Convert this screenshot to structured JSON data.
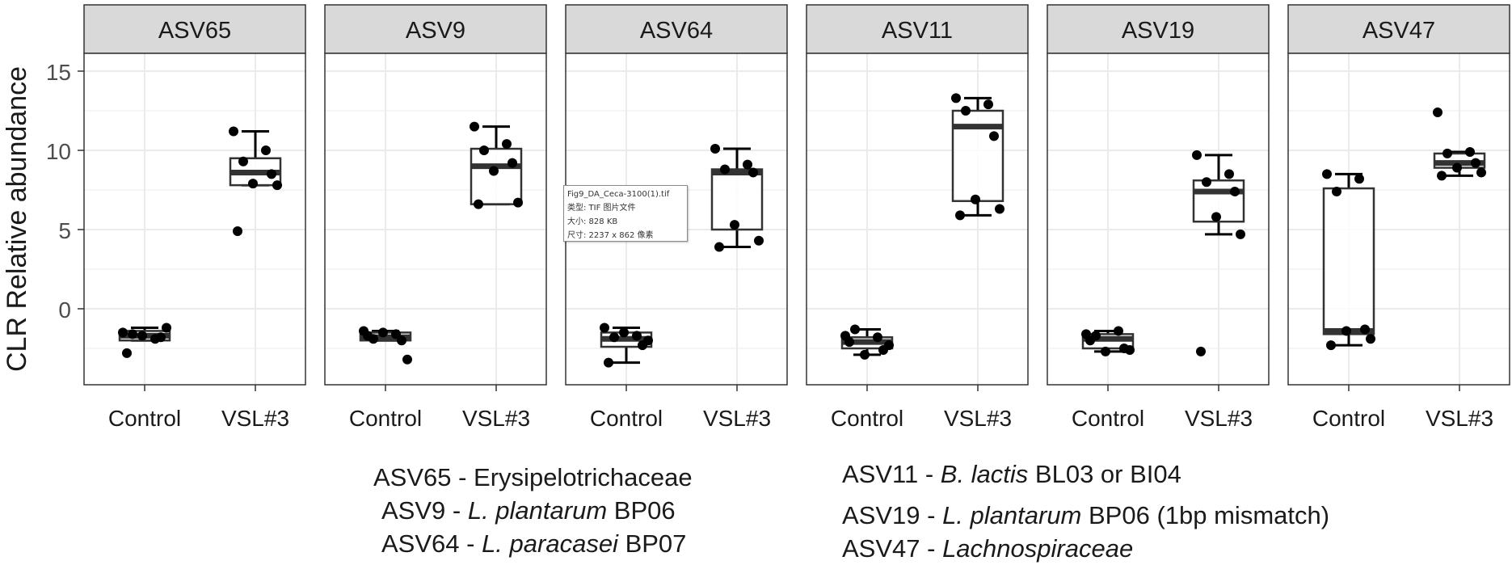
{
  "chart_data": {
    "type": "boxplot",
    "ylabel": "CLR Relative abundance",
    "ylim": [
      -4.8,
      19.2
    ],
    "yticks": [
      0,
      5,
      10,
      15
    ],
    "grid": true,
    "groups": [
      "Control",
      "VSL#3"
    ],
    "facets": [
      {
        "label": "ASV65",
        "boxes": [
          {
            "group": "Control",
            "min": -1.2,
            "q1": -2.0,
            "median": -1.7,
            "q3": -1.4,
            "max": -1.2,
            "whisker_low": -2.0,
            "whisker_high": -1.2,
            "points": [
              -1.5,
              -1.9,
              -1.6,
              -1.8,
              -1.7,
              -1.2,
              -2.8
            ]
          },
          {
            "group": "VSL#3",
            "q1": 7.8,
            "median": 8.6,
            "q3": 9.5,
            "whisker_low": 7.8,
            "whisker_high": 11.2,
            "points": [
              11.2,
              10.0,
              9.3,
              8.5,
              7.9,
              7.8,
              4.9
            ]
          }
        ]
      },
      {
        "label": "ASV9",
        "boxes": [
          {
            "group": "Control",
            "q1": -2.0,
            "median": -1.8,
            "q3": -1.5,
            "whisker_low": -2.0,
            "whisker_high": -1.4,
            "points": [
              -1.4,
              -1.6,
              -1.9,
              -2.0,
              -1.5,
              -3.2,
              -1.7
            ]
          },
          {
            "group": "VSL#3",
            "q1": 6.6,
            "median": 9.0,
            "q3": 10.1,
            "whisker_low": 6.6,
            "whisker_high": 11.5,
            "points": [
              11.5,
              10.4,
              10.0,
              9.2,
              8.7,
              6.7,
              6.6
            ]
          }
        ]
      },
      {
        "label": "ASV64",
        "boxes": [
          {
            "group": "Control",
            "q1": -2.4,
            "median": -1.9,
            "q3": -1.5,
            "whisker_low": -3.4,
            "whisker_high": -1.2,
            "points": [
              -1.2,
              -1.7,
              -1.8,
              -2.3,
              -1.5,
              -2.0,
              -3.4
            ]
          },
          {
            "group": "VSL#3",
            "q1": 5.0,
            "median": 8.6,
            "q3": 8.8,
            "whisker_low": 3.9,
            "whisker_high": 10.1,
            "points": [
              10.1,
              9.1,
              8.8,
              8.6,
              5.3,
              4.3,
              3.9
            ]
          }
        ]
      },
      {
        "label": "ASV11",
        "boxes": [
          {
            "group": "Control",
            "q1": -2.5,
            "median": -2.1,
            "q3": -1.8,
            "whisker_low": -2.9,
            "whisker_high": -1.3,
            "points": [
              -1.7,
              -1.8,
              -1.3,
              -2.6,
              -2.9,
              -2.3,
              -2.1
            ]
          },
          {
            "group": "VSL#3",
            "q1": 6.8,
            "median": 11.5,
            "q3": 12.5,
            "whisker_low": 5.9,
            "whisker_high": 13.3,
            "points": [
              13.3,
              12.9,
              12.5,
              10.9,
              6.9,
              6.3,
              5.9
            ]
          }
        ]
      },
      {
        "label": "ASV19",
        "boxes": [
          {
            "group": "Control",
            "q1": -2.5,
            "median": -1.9,
            "q3": -1.6,
            "whisker_low": -2.7,
            "whisker_high": -1.4,
            "points": [
              -1.6,
              -1.4,
              -1.7,
              -2.5,
              -2.7,
              -2.6,
              -2.0
            ]
          },
          {
            "group": "VSL#3",
            "q1": 5.5,
            "median": 7.4,
            "q3": 8.1,
            "whisker_low": 4.7,
            "whisker_high": 9.7,
            "points": [
              9.7,
              8.5,
              8.0,
              7.4,
              5.8,
              4.7,
              -2.7
            ]
          }
        ]
      },
      {
        "label": "ASV47",
        "boxes": [
          {
            "group": "Control",
            "q1": -1.6,
            "median": -1.4,
            "q3": 7.6,
            "whisker_low": -2.3,
            "whisker_high": 8.5,
            "points": [
              8.5,
              8.2,
              7.4,
              -1.3,
              -1.4,
              -1.9,
              -2.3
            ]
          },
          {
            "group": "VSL#3",
            "q1": 8.9,
            "median": 9.2,
            "q3": 9.8,
            "whisker_low": 8.4,
            "whisker_high": 9.9,
            "points": [
              12.4,
              9.9,
              9.8,
              9.2,
              8.9,
              8.6,
              8.4
            ]
          }
        ]
      }
    ]
  },
  "caption_left": {
    "line1": {
      "prefix": "ASV65 - Erysipelotrichaceae",
      "italic": "",
      "suffix": ""
    },
    "line2": {
      "prefix": "ASV9 - ",
      "italic": "L. plantarum",
      "suffix": " BP06"
    },
    "line3": {
      "prefix": "ASV64 - ",
      "italic": "L. paracasei",
      "suffix": " BP07"
    }
  },
  "caption_right": {
    "line1": {
      "prefix": "ASV11 - ",
      "italic": "B. lactis",
      "suffix": " BL03 or BI04"
    },
    "line2": {
      "prefix": "ASV19 - ",
      "italic": "L. plantarum",
      "suffix": " BP06 (1bp mismatch)"
    },
    "line3": {
      "prefix": "ASV47 - ",
      "italic": "Lachnospiraceae",
      "suffix": ""
    }
  },
  "tooltip": {
    "filename": "Fig9_DA_Ceca-3100(1).tif",
    "type": "类型: TIF 图片文件",
    "size": "大小: 828 KB",
    "dims": "尺寸: 2237 x 862 像素"
  },
  "colors": {
    "strip_fill": "#d9d9d9",
    "panel_border": "#333333",
    "grid": "#ebebeb",
    "box_stroke": "#333333",
    "points": "#000000"
  }
}
